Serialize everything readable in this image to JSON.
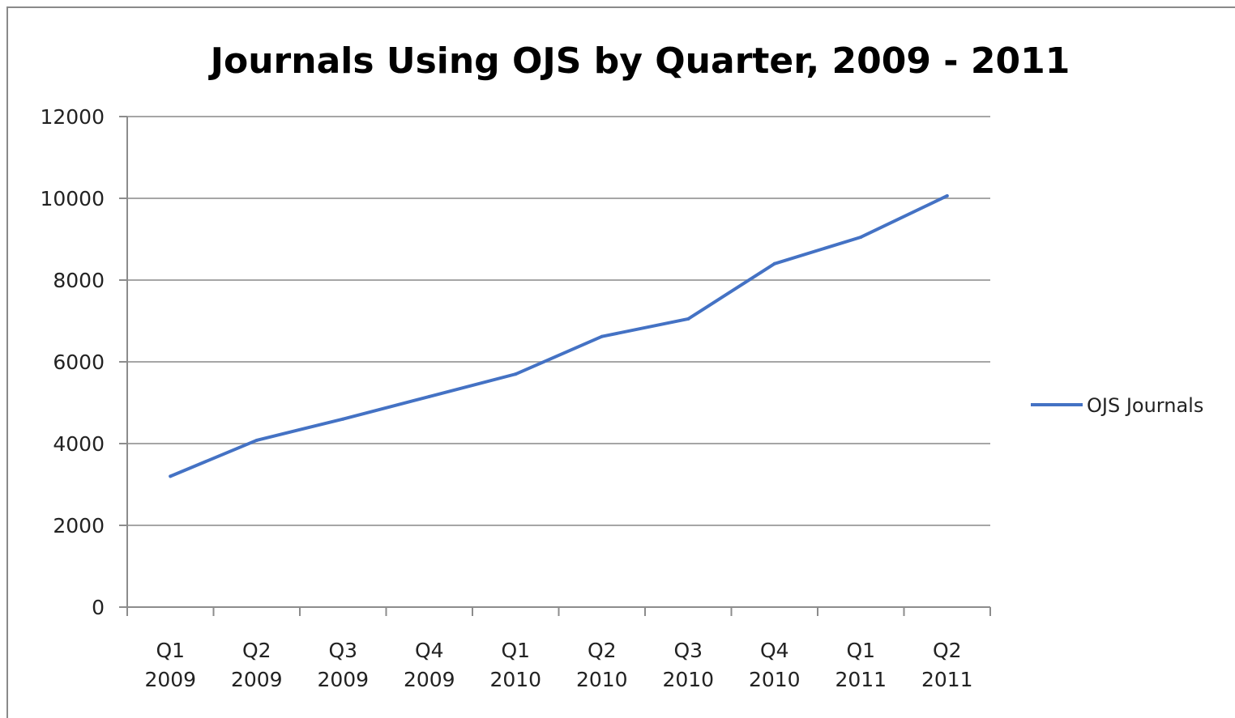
{
  "chart_data": {
    "type": "line",
    "title": "Journals Using OJS by Quarter, 2009 - 2011",
    "xlabel": "",
    "ylabel": "",
    "categories": [
      [
        "Q1",
        "2009"
      ],
      [
        "Q2",
        "2009"
      ],
      [
        "Q3",
        "2009"
      ],
      [
        "Q4",
        "2009"
      ],
      [
        "Q1",
        "2010"
      ],
      [
        "Q2",
        "2010"
      ],
      [
        "Q3",
        "2010"
      ],
      [
        "Q4",
        "2010"
      ],
      [
        "Q1",
        "2011"
      ],
      [
        "Q2",
        "2011"
      ]
    ],
    "series": [
      {
        "name": "OJS Journals",
        "color": "#4472c4",
        "values": [
          3200,
          4080,
          4600,
          5150,
          5700,
          6620,
          7050,
          8400,
          9050,
          10060
        ]
      }
    ],
    "yticks": [
      "0",
      "2000",
      "4000",
      "6000",
      "8000",
      "10000",
      "12000"
    ],
    "ylim": [
      0,
      12000
    ],
    "grid": true,
    "legend": "right"
  }
}
